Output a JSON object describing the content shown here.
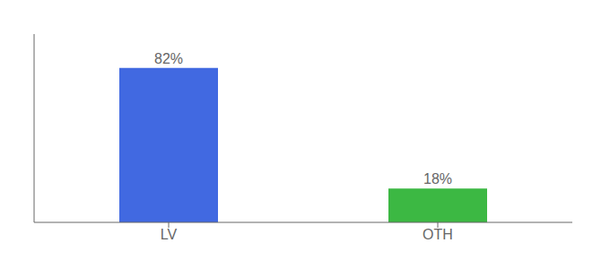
{
  "chart_data": {
    "type": "bar",
    "categories": [
      "LV",
      "OTH"
    ],
    "values": [
      82,
      18
    ],
    "value_labels": [
      "82%",
      "18%"
    ],
    "colors": [
      "#4169e1",
      "#3cb843"
    ],
    "ylim": [
      0,
      100
    ],
    "data_labels": true,
    "tick_labels": "x"
  }
}
